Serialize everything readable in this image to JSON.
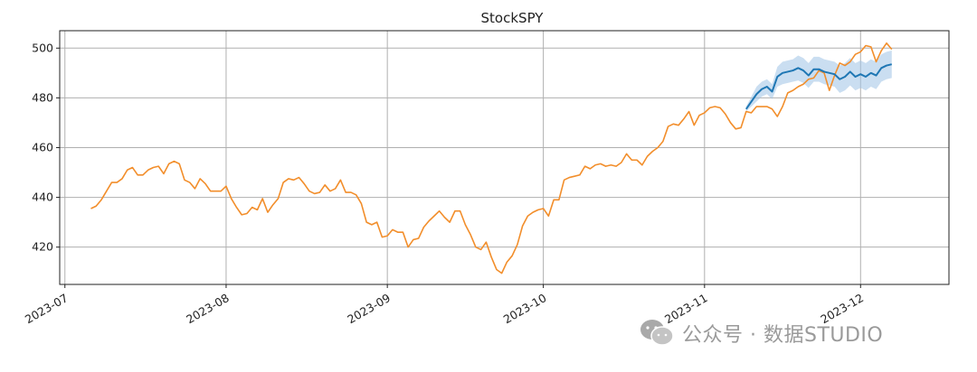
{
  "chart_data": {
    "type": "line",
    "title": "StockSPY",
    "xlabel": "",
    "ylabel": "",
    "x_ticks": [
      "2023-07",
      "2023-08",
      "2023-09",
      "2023-10",
      "2023-11",
      "2023-12"
    ],
    "y_ticks": [
      420,
      440,
      460,
      480,
      500
    ],
    "xlim": [
      "2023-06-30",
      "2023-12-18"
    ],
    "ylim": [
      405,
      507
    ],
    "grid": true,
    "legend": "none",
    "series": [
      {
        "color": "#f28e2b",
        "points": [
          [
            "2023-07-06",
            435.5
          ],
          [
            "2023-07-07",
            436.5
          ],
          [
            "2023-07-08",
            439
          ],
          [
            "2023-07-09",
            442.5
          ],
          [
            "2023-07-10",
            446
          ],
          [
            "2023-07-11",
            446
          ],
          [
            "2023-07-12",
            447.5
          ],
          [
            "2023-07-13",
            451
          ],
          [
            "2023-07-14",
            452
          ],
          [
            "2023-07-15",
            449
          ],
          [
            "2023-07-16",
            449
          ],
          [
            "2023-07-17",
            451
          ],
          [
            "2023-07-18",
            452
          ],
          [
            "2023-07-19",
            452.5
          ],
          [
            "2023-07-20",
            449.5
          ],
          [
            "2023-07-21",
            453.5
          ],
          [
            "2023-07-22",
            454.5
          ],
          [
            "2023-07-23",
            453.5
          ],
          [
            "2023-07-24",
            447
          ],
          [
            "2023-07-25",
            446
          ],
          [
            "2023-07-26",
            443.5
          ],
          [
            "2023-07-27",
            447.5
          ],
          [
            "2023-07-28",
            445.5
          ],
          [
            "2023-07-29",
            442.5
          ],
          [
            "2023-07-30",
            442.5
          ],
          [
            "2023-07-31",
            442.5
          ],
          [
            "2023-08-01",
            444.5
          ],
          [
            "2023-08-02",
            439.5
          ],
          [
            "2023-08-03",
            436
          ],
          [
            "2023-08-04",
            433
          ],
          [
            "2023-08-05",
            433.5
          ],
          [
            "2023-08-06",
            436
          ],
          [
            "2023-08-07",
            435
          ],
          [
            "2023-08-08",
            439.5
          ],
          [
            "2023-08-09",
            434
          ],
          [
            "2023-08-10",
            437
          ],
          [
            "2023-08-11",
            439.5
          ],
          [
            "2023-08-12",
            446
          ],
          [
            "2023-08-13",
            447.5
          ],
          [
            "2023-08-14",
            447
          ],
          [
            "2023-08-15",
            448
          ],
          [
            "2023-08-16",
            445.5
          ],
          [
            "2023-08-17",
            442.5
          ],
          [
            "2023-08-18",
            441.5
          ],
          [
            "2023-08-19",
            442
          ],
          [
            "2023-08-20",
            445
          ],
          [
            "2023-08-21",
            442.5
          ],
          [
            "2023-08-22",
            443.5
          ],
          [
            "2023-08-23",
            447
          ],
          [
            "2023-08-24",
            442
          ],
          [
            "2023-08-25",
            442
          ],
          [
            "2023-08-26",
            441
          ],
          [
            "2023-08-27",
            437.5
          ],
          [
            "2023-08-28",
            430
          ],
          [
            "2023-08-29",
            429
          ],
          [
            "2023-08-30",
            430
          ],
          [
            "2023-08-31",
            424
          ],
          [
            "2023-09-01",
            424.5
          ],
          [
            "2023-09-02",
            427
          ],
          [
            "2023-09-03",
            426
          ],
          [
            "2023-09-04",
            426
          ],
          [
            "2023-09-05",
            420
          ],
          [
            "2023-09-06",
            423
          ],
          [
            "2023-09-07",
            423.5
          ],
          [
            "2023-09-08",
            428
          ],
          [
            "2023-09-09",
            430.5
          ],
          [
            "2023-09-10",
            432.5
          ],
          [
            "2023-09-11",
            434.5
          ],
          [
            "2023-09-12",
            432
          ],
          [
            "2023-09-13",
            430
          ],
          [
            "2023-09-14",
            434.5
          ],
          [
            "2023-09-15",
            434.5
          ],
          [
            "2023-09-16",
            429
          ],
          [
            "2023-09-17",
            425
          ],
          [
            "2023-09-18",
            420
          ],
          [
            "2023-09-19",
            419
          ],
          [
            "2023-09-20",
            422
          ],
          [
            "2023-09-21",
            416
          ],
          [
            "2023-09-22",
            411
          ],
          [
            "2023-09-23",
            409.5
          ],
          [
            "2023-09-24",
            414
          ],
          [
            "2023-09-25",
            416.5
          ],
          [
            "2023-09-26",
            421
          ],
          [
            "2023-09-27",
            428.5
          ],
          [
            "2023-09-28",
            432.5
          ],
          [
            "2023-09-29",
            434
          ],
          [
            "2023-09-30",
            435
          ],
          [
            "2023-10-01",
            435.5
          ],
          [
            "2023-10-02",
            432.5
          ],
          [
            "2023-10-03",
            439
          ],
          [
            "2023-10-04",
            439
          ],
          [
            "2023-10-05",
            447
          ],
          [
            "2023-10-06",
            448
          ],
          [
            "2023-10-07",
            448.5
          ],
          [
            "2023-10-08",
            449
          ],
          [
            "2023-10-09",
            452.5
          ],
          [
            "2023-10-10",
            451.5
          ],
          [
            "2023-10-11",
            453
          ],
          [
            "2023-10-12",
            453.5
          ],
          [
            "2023-10-13",
            452.5
          ],
          [
            "2023-10-14",
            453
          ],
          [
            "2023-10-15",
            452.5
          ],
          [
            "2023-10-16",
            454
          ],
          [
            "2023-10-17",
            457.5
          ],
          [
            "2023-10-18",
            455
          ],
          [
            "2023-10-19",
            455
          ],
          [
            "2023-10-20",
            453
          ],
          [
            "2023-10-21",
            456.5
          ],
          [
            "2023-10-22",
            458.5
          ],
          [
            "2023-10-23",
            460
          ],
          [
            "2023-10-24",
            462.5
          ],
          [
            "2023-10-25",
            468.5
          ],
          [
            "2023-10-26",
            469.5
          ],
          [
            "2023-10-27",
            469
          ],
          [
            "2023-10-28",
            471.5
          ],
          [
            "2023-10-29",
            474.5
          ],
          [
            "2023-10-30",
            469
          ],
          [
            "2023-10-31",
            473
          ],
          [
            "2023-11-01",
            474
          ],
          [
            "2023-11-02",
            476
          ],
          [
            "2023-11-03",
            476.5
          ],
          [
            "2023-11-04",
            476
          ],
          [
            "2023-11-05",
            473.5
          ],
          [
            "2023-11-06",
            470
          ],
          [
            "2023-11-07",
            467.5
          ],
          [
            "2023-11-08",
            468
          ],
          [
            "2023-11-09",
            474.5
          ],
          [
            "2023-11-10",
            474
          ],
          [
            "2023-11-11",
            476.5
          ],
          [
            "2023-11-12",
            476.5
          ],
          [
            "2023-11-13",
            476.5
          ],
          [
            "2023-11-14",
            475.5
          ],
          [
            "2023-11-15",
            472.5
          ],
          [
            "2023-11-16",
            476.5
          ],
          [
            "2023-11-17",
            482
          ],
          [
            "2023-11-18",
            483
          ],
          [
            "2023-11-19",
            484.5
          ],
          [
            "2023-11-20",
            485.5
          ],
          [
            "2023-11-21",
            487.5
          ],
          [
            "2023-11-22",
            488
          ],
          [
            "2023-11-23",
            491
          ],
          [
            "2023-11-24",
            490
          ],
          [
            "2023-11-25",
            483
          ],
          [
            "2023-11-26",
            489
          ],
          [
            "2023-11-27",
            494
          ],
          [
            "2023-11-28",
            493
          ],
          [
            "2023-11-29",
            494.5
          ],
          [
            "2023-11-30",
            497.5
          ],
          [
            "2023-12-01",
            498.5
          ],
          [
            "2023-12-02",
            501
          ],
          [
            "2023-12-03",
            500.5
          ],
          [
            "2023-12-04",
            494.5
          ],
          [
            "2023-12-05",
            499
          ],
          [
            "2023-12-06",
            502
          ],
          [
            "2023-12-07",
            499.5
          ]
        ]
      },
      {
        "color": "#1f77b4",
        "band_color": "#9fc3e6",
        "points": [
          [
            "2023-11-09",
            475.5,
            474.5,
            476.5
          ],
          [
            "2023-11-10",
            478.5,
            476.5,
            480.5
          ],
          [
            "2023-11-11",
            481.5,
            478.5,
            484.5
          ],
          [
            "2023-11-12",
            483.5,
            480.5,
            486.5
          ],
          [
            "2023-11-13",
            484.5,
            481.5,
            487.5
          ],
          [
            "2023-11-14",
            482.5,
            479.5,
            485.5
          ],
          [
            "2023-11-15",
            488.5,
            484.5,
            492.5
          ],
          [
            "2023-11-16",
            490,
            485.5,
            494.5
          ],
          [
            "2023-11-17",
            490.5,
            486,
            495
          ],
          [
            "2023-11-18",
            491,
            486.5,
            495.5
          ],
          [
            "2023-11-19",
            492,
            487,
            497
          ],
          [
            "2023-11-20",
            491,
            486,
            496
          ],
          [
            "2023-11-21",
            489,
            484,
            494
          ],
          [
            "2023-11-22",
            491.5,
            486.5,
            496.5
          ],
          [
            "2023-11-23",
            491.5,
            486.5,
            496.5
          ],
          [
            "2023-11-24",
            490.5,
            485.5,
            495.5
          ],
          [
            "2023-11-25",
            490,
            485,
            495
          ],
          [
            "2023-11-26",
            489.5,
            484.5,
            494.5
          ],
          [
            "2023-11-27",
            487.5,
            482,
            493
          ],
          [
            "2023-11-28",
            488.5,
            483,
            494
          ],
          [
            "2023-11-29",
            490.5,
            485,
            496
          ],
          [
            "2023-11-30",
            488.5,
            483,
            494
          ],
          [
            "2023-12-01",
            489.5,
            484,
            495
          ],
          [
            "2023-12-02",
            488.5,
            483,
            494
          ],
          [
            "2023-12-03",
            490,
            484.5,
            495.5
          ],
          [
            "2023-12-04",
            489,
            483.5,
            494.5
          ],
          [
            "2023-12-05",
            492,
            486.5,
            497.5
          ],
          [
            "2023-12-06",
            493,
            487.5,
            498.5
          ],
          [
            "2023-12-07",
            493.5,
            488,
            499
          ]
        ]
      }
    ]
  },
  "watermark": {
    "text": "公众号 · 数据STUDIO",
    "icon": "wechat-icon"
  }
}
